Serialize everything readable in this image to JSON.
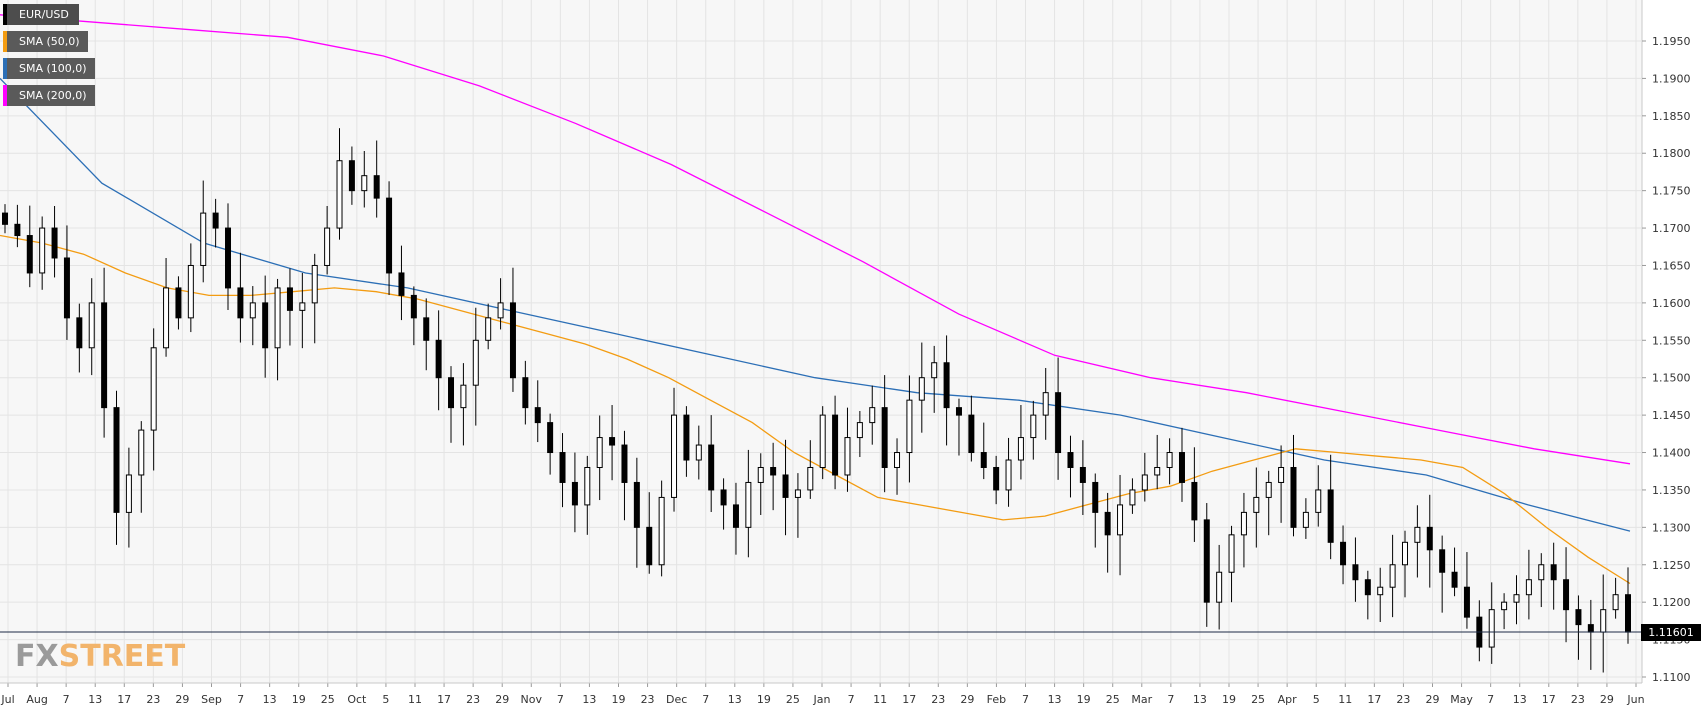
{
  "chart_data": {
    "type": "candlestick",
    "symbol": "EUR/USD",
    "last_price_label": "1.11601",
    "last_price": 1.11601,
    "ylim": [
      1.108,
      1.2
    ],
    "yticks": [
      "1.1950",
      "1.1900",
      "1.1850",
      "1.1800",
      "1.1750",
      "1.1700",
      "1.1650",
      "1.1600",
      "1.1550",
      "1.1500",
      "1.1450",
      "1.1400",
      "1.1350",
      "1.1300",
      "1.1250",
      "1.1200",
      "1.1150",
      "1.1100"
    ],
    "x_tick_labels": [
      "Jul",
      "Aug",
      "7",
      "13",
      "17",
      "23",
      "29",
      "Sep",
      "7",
      "13",
      "19",
      "25",
      "Oct",
      "5",
      "11",
      "17",
      "23",
      "29",
      "Nov",
      "7",
      "13",
      "19",
      "23",
      "Dec",
      "7",
      "13",
      "19",
      "25",
      "Jan",
      "7",
      "11",
      "17",
      "23",
      "29",
      "Feb",
      "7",
      "13",
      "19",
      "25",
      "Mar",
      "7",
      "13",
      "19",
      "25",
      "Apr",
      "5",
      "11",
      "17",
      "23",
      "29",
      "May",
      "7",
      "13",
      "17",
      "23",
      "29",
      "Jun"
    ],
    "grid": true,
    "legend_position": "top-left",
    "series": [
      {
        "name": "SMA (50,0)",
        "color": "#f39c12"
      },
      {
        "name": "SMA (100,0)",
        "color": "#2c6fb6"
      },
      {
        "name": "SMA (200,0)",
        "color": "#ff00ff"
      }
    ],
    "closes": [
      1.1705,
      1.169,
      1.164,
      1.17,
      1.166,
      1.158,
      1.154,
      1.16,
      1.146,
      1.132,
      1.137,
      1.143,
      1.154,
      1.162,
      1.158,
      1.165,
      1.172,
      1.17,
      1.162,
      1.158,
      1.16,
      1.154,
      1.162,
      1.159,
      1.16,
      1.165,
      1.17,
      1.179,
      1.175,
      1.177,
      1.174,
      1.164,
      1.161,
      1.158,
      1.155,
      1.15,
      1.146,
      1.149,
      1.155,
      1.158,
      1.16,
      1.15,
      1.146,
      1.144,
      1.14,
      1.136,
      1.133,
      1.138,
      1.142,
      1.141,
      1.136,
      1.13,
      1.125,
      1.134,
      1.145,
      1.139,
      1.141,
      1.135,
      1.133,
      1.13,
      1.136,
      1.138,
      1.137,
      1.134,
      1.135,
      1.138,
      1.145,
      1.137,
      1.142,
      1.144,
      1.146,
      1.138,
      1.14,
      1.147,
      1.15,
      1.152,
      1.146,
      1.145,
      1.14,
      1.138,
      1.135,
      1.139,
      1.142,
      1.145,
      1.148,
      1.14,
      1.138,
      1.136,
      1.132,
      1.129,
      1.133,
      1.135,
      1.137,
      1.138,
      1.14,
      1.136,
      1.131,
      1.12,
      1.124,
      1.129,
      1.132,
      1.134,
      1.136,
      1.138,
      1.13,
      1.132,
      1.135,
      1.128,
      1.125,
      1.123,
      1.121,
      1.122,
      1.125,
      1.128,
      1.13,
      1.127,
      1.124,
      1.122,
      1.118,
      1.114,
      1.119,
      1.12,
      1.121,
      1.123,
      1.125,
      1.123,
      1.119,
      1.117,
      1.116,
      1.119,
      1.121,
      1.116
    ],
    "sma50": [
      1.169,
      1.168,
      1.1665,
      1.164,
      1.162,
      1.161,
      1.161,
      1.1615,
      1.162,
      1.1615,
      1.1605,
      1.159,
      1.1575,
      1.156,
      1.1545,
      1.1525,
      1.15,
      1.147,
      1.144,
      1.14,
      1.137,
      1.134,
      1.133,
      1.132,
      1.131,
      1.1315,
      1.133,
      1.1345,
      1.1355,
      1.1375,
      1.139,
      1.1405,
      1.14,
      1.1395,
      1.139,
      1.138,
      1.1345,
      1.13,
      1.126,
      1.1225
    ],
    "sma100": [
      1.19,
      1.176,
      1.168,
      1.164,
      1.162,
      1.159,
      1.156,
      1.153,
      1.15,
      1.148,
      1.147,
      1.145,
      1.142,
      1.139,
      1.137,
      1.133,
      1.1295
    ],
    "sma200": [
      1.1985,
      1.1975,
      1.1965,
      1.1955,
      1.193,
      1.189,
      1.184,
      1.1785,
      1.172,
      1.1655,
      1.1585,
      1.153,
      1.15,
      1.148,
      1.1455,
      1.143,
      1.1405,
      1.1385
    ]
  },
  "logo": {
    "part1": "FX",
    "part2": "STREET"
  }
}
